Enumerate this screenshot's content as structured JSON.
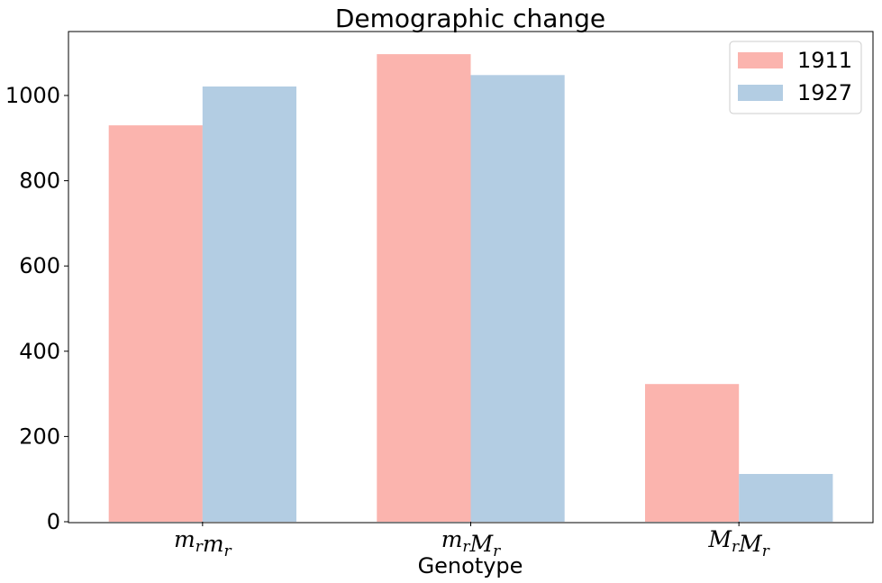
{
  "chart_data": {
    "type": "bar",
    "title": "Demographic change",
    "xlabel": "Genotype",
    "ylabel": "",
    "categories": [
      {
        "label": "mrmr",
        "parts": [
          [
            "m",
            "r"
          ],
          [
            "m",
            "r"
          ]
        ]
      },
      {
        "label": "mrMr",
        "parts": [
          [
            "m",
            "r"
          ],
          [
            "M",
            "r"
          ]
        ]
      },
      {
        "label": "MrMr",
        "parts": [
          [
            "M",
            "r"
          ],
          [
            "M",
            "r"
          ]
        ]
      }
    ],
    "series": [
      {
        "name": "1911",
        "color": "#fbb4ae",
        "values": [
          930,
          1097,
          323
        ]
      },
      {
        "name": "1927",
        "color": "#b3cde3",
        "values": [
          1021,
          1048,
          112
        ]
      }
    ],
    "ylim": [
      0,
      1150
    ],
    "yticks": [
      "0",
      "200",
      "400",
      "600",
      "800",
      "1000"
    ],
    "grid": false,
    "legend_position": "top-right"
  }
}
